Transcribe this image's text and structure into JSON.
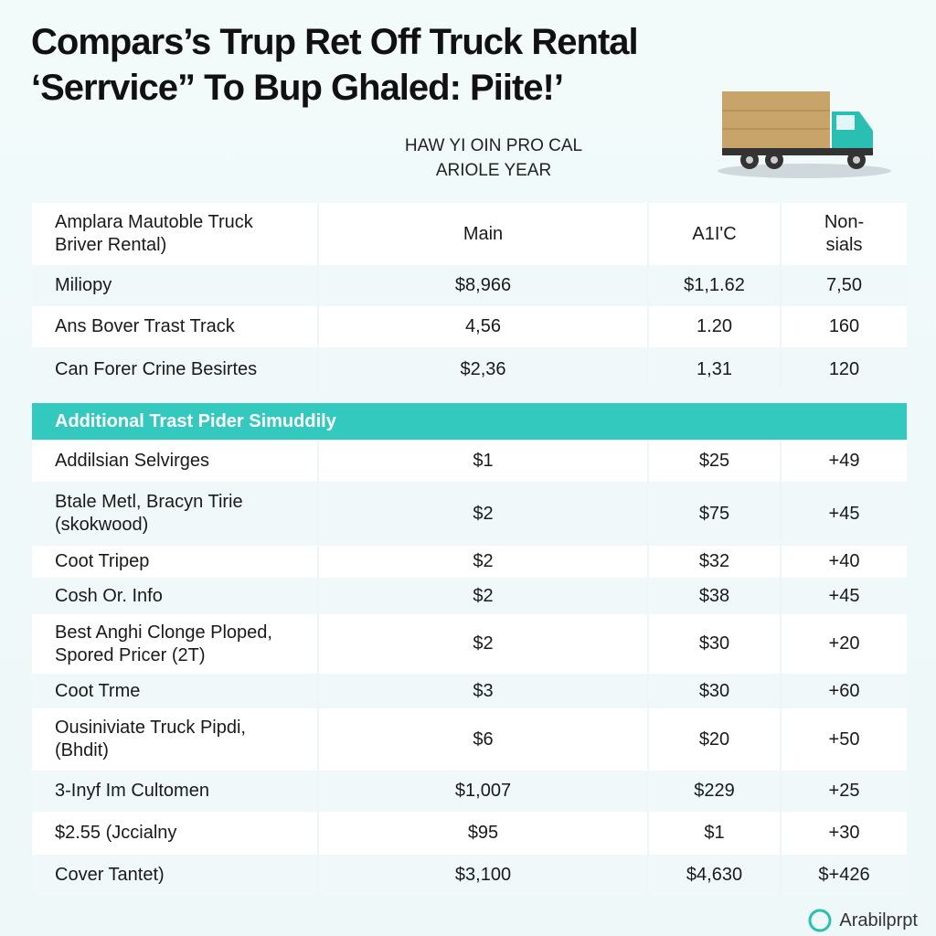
{
  "header": {
    "title": [
      "Compars’s Trup Ret Off Truck Rental",
      "‘Serrvice” To Bup Ghaled: Piite!’"
    ],
    "subtitle": [
      "HAW YI OIN PRO CAL",
      "ARIOLE YEAR"
    ]
  },
  "table": {
    "columns": [
      "Amplara Mautoble Truck Briver Rental)",
      "Main",
      "A1I'C",
      "Non-sials"
    ],
    "rows": [
      [
        "Miliopy",
        "$8,966",
        "$1,1.62",
        "7,50"
      ],
      [
        "Ans Bover Trast Track",
        "4,56",
        "1.20",
        "160"
      ],
      [
        "Can Forer Crine Besirtes",
        "$2,36",
        "1,31",
        "120"
      ]
    ]
  },
  "section": {
    "title": "Additional Trast Pider Simuddily",
    "rows": [
      [
        "Addilsian Selvirges",
        "$1",
        "$25",
        "+49"
      ],
      [
        "Btale Metl, Bracyn Tirie (skokwood)",
        "$2",
        "$75",
        "+45"
      ],
      [
        "Coot Tripep",
        "$2",
        "$32",
        "+40"
      ],
      [
        "Cosh Or. Info",
        "$2",
        "$38",
        "+45"
      ],
      [
        "Best Anghi Clonge Ploped, Spored Pricer (2T)",
        "$2",
        "$30",
        "+20"
      ],
      [
        "Coot Trme",
        "$3",
        "$30",
        "+60"
      ],
      [
        "Ousiniviate Truck Pipdi, (Bhdit)",
        "$6",
        "$20",
        "+50"
      ],
      [
        "3-Inyf Im Cultomen",
        "$1,007",
        "$229",
        "+25"
      ],
      [
        "$2.55 (Jccialny",
        "$95",
        "$1",
        "+30"
      ],
      [
        "Cover Tantet)",
        "$3,100",
        "$4,630",
        "$+426"
      ]
    ]
  },
  "footer": {
    "brand": "Arabilprpt"
  }
}
